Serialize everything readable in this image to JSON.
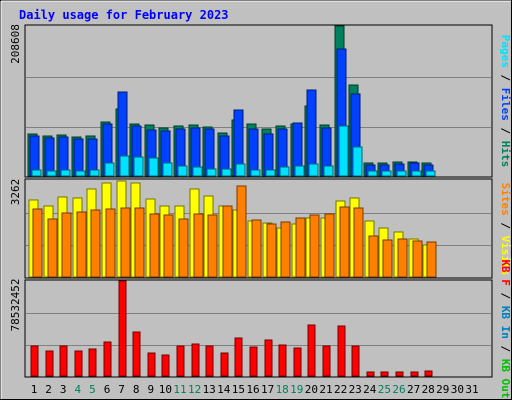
{
  "chart_data": {
    "type": "bar",
    "title": "Daily usage for February 2023",
    "x": [
      "1",
      "2",
      "3",
      "4",
      "5",
      "6",
      "7",
      "8",
      "9",
      "10",
      "11",
      "12",
      "13",
      "14",
      "15",
      "16",
      "17",
      "18",
      "19",
      "20",
      "21",
      "22",
      "23",
      "24",
      "25",
      "26",
      "27",
      "28",
      "29",
      "30",
      "31"
    ],
    "weekend_days": [
      4,
      5,
      11,
      12,
      18,
      19,
      25,
      26
    ],
    "colors": {
      "hits": "#00805c",
      "files": "#0040ff",
      "pages": "#00e0ff",
      "visits": "#ffff00",
      "sites": "#ff8000",
      "kbytes": "#ff0000",
      "kbin": "#0080c0",
      "kbout": "#00c000",
      "title": "#0000ff",
      "weekend": "#00805c",
      "background": "#c0c0c0"
    },
    "panels": [
      {
        "name": "hits-files-pages",
        "ymax_label": "208608",
        "ymax": 208608,
        "right_label_parts": [
          {
            "text": "Pages",
            "color": "pages"
          },
          {
            "text": " / ",
            "color": "black"
          },
          {
            "text": "Files",
            "color": "files"
          },
          {
            "text": " / ",
            "color": "black"
          },
          {
            "text": "Hits",
            "color": "hits"
          }
        ],
        "series": [
          {
            "name": "Hits",
            "color": "hits",
            "values": [
              58000,
              56000,
              57000,
              54000,
              55000,
              75000,
              93000,
              73000,
              71000,
              67000,
              69000,
              71000,
              68000,
              60000,
              78000,
              72000,
              65000,
              70000,
              72000,
              97000,
              71000,
              208608,
              126000,
              18000,
              18000,
              19000,
              20000,
              18000,
              0,
              0,
              0
            ]
          },
          {
            "name": "Files",
            "color": "files",
            "values": [
              55000,
              53000,
              54000,
              51000,
              52000,
              73000,
              117000,
              70000,
              64000,
              63000,
              65000,
              67000,
              65000,
              56000,
              92000,
              66000,
              59000,
              66000,
              74000,
              119000,
              67000,
              177000,
              114000,
              15000,
              15000,
              17000,
              18000,
              15000,
              0,
              0,
              0
            ]
          },
          {
            "name": "Pages",
            "color": "pages",
            "values": [
              8000,
              7000,
              8000,
              7000,
              8000,
              18000,
              28000,
              26000,
              25000,
              18000,
              14000,
              12000,
              10000,
              10000,
              17000,
              9000,
              9000,
              12000,
              14000,
              16000,
              14000,
              69000,
              40000,
              7000,
              7000,
              7000,
              7000,
              7000,
              0,
              0,
              0
            ]
          }
        ]
      },
      {
        "name": "visits-sites",
        "ymax_label": "3262",
        "ymax": 3262,
        "right_label_parts": [
          {
            "text": "Sites",
            "color": "sites"
          },
          {
            "text": " / ",
            "color": "black"
          },
          {
            "text": "Visits",
            "color": "visits"
          }
        ],
        "series": [
          {
            "name": "Visits",
            "color": "visits",
            "values": [
              2580,
              2400,
              2700,
              2650,
              2950,
              3150,
              3220,
              3150,
              2620,
              2400,
              2400,
              2950,
              2720,
              2400,
              2250,
              1900,
              1820,
              1650,
              1780,
              2000,
              1990,
              2550,
              2650,
              1900,
              1660,
              1520,
              1290,
              1090,
              0,
              0,
              0
            ]
          },
          {
            "name": "Sites",
            "color": "sites",
            "values": [
              2270,
              1940,
              2140,
              2190,
              2240,
              2300,
              2320,
              2320,
              2120,
              2070,
              1940,
              2110,
              2090,
              2380,
              3060,
              1930,
              1790,
              1860,
              1990,
              2070,
              2120,
              2340,
              2320,
              1380,
              1260,
              1280,
              1220,
              1190,
              0,
              0,
              0
            ]
          }
        ]
      },
      {
        "name": "kbytes",
        "ymax_label": "78532452",
        "ymax": 78532452,
        "right_label_parts": [
          {
            "text": "KB F",
            "color": "kbytes"
          },
          {
            "text": " / ",
            "color": "black"
          },
          {
            "text": "KB In",
            "color": "kbin"
          },
          {
            "text": " / ",
            "color": "black"
          },
          {
            "text": "KB Out",
            "color": "kbout"
          }
        ],
        "series": [
          {
            "name": "KB F",
            "color": "kbytes",
            "values": [
              24500000,
              21000000,
              24500000,
              21000000,
              22000000,
              28500000,
              78532452,
              36500000,
              19000000,
              17000000,
              24500000,
              26500000,
              24500000,
              19000000,
              31500000,
              24000000,
              29500000,
              26000000,
              23500000,
              42000000,
              25000000,
              41000000,
              25000000,
              3200000,
              3200000,
              3200000,
              3200000,
              4500000,
              0,
              0,
              0
            ]
          }
        ]
      }
    ]
  }
}
